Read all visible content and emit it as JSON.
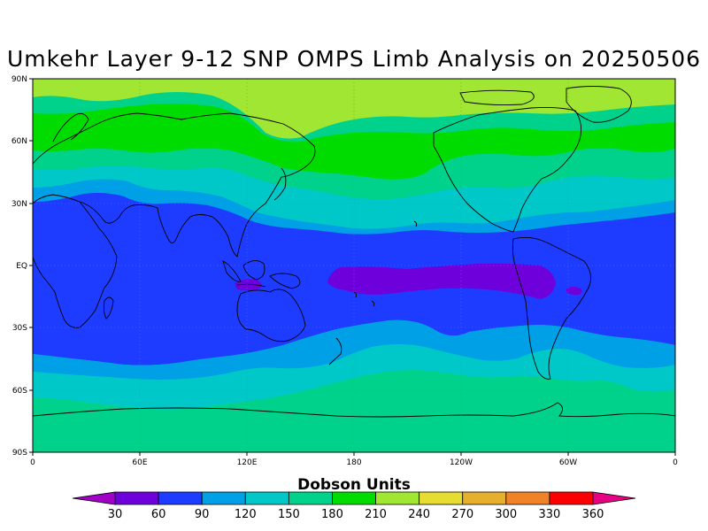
{
  "title": "Umkehr Layer 9-12 SNP OMPS Limb Analysis on 20250506",
  "map": {
    "projection": "equirectangular",
    "lon_range": [
      0,
      360
    ],
    "lat_range": [
      -90,
      90
    ],
    "lat_ticks": [
      "90N",
      "60N",
      "30N",
      "EQ",
      "30S",
      "60S",
      "90S"
    ],
    "lon_ticks": [
      "0",
      "60E",
      "120E",
      "180",
      "120W",
      "60W",
      "0"
    ],
    "grid": true
  },
  "colorbar": {
    "title": "Dobson Units",
    "levels": [
      "30",
      "60",
      "90",
      "120",
      "150",
      "180",
      "210",
      "240",
      "270",
      "300",
      "330",
      "360"
    ],
    "colors": [
      "#a000c8",
      "#6e00dc",
      "#1e3cff",
      "#00a0e6",
      "#00c8c8",
      "#00d28c",
      "#00dc00",
      "#a0e632",
      "#e6dc32",
      "#e6af2d",
      "#f08228",
      "#fa0000",
      "#e60082"
    ]
  },
  "chart_data": {
    "type": "heatmap",
    "title": "Umkehr Layer 9-12 SNP OMPS Limb Analysis on 20250506",
    "xlabel": "",
    "ylabel": "",
    "xlim": [
      0,
      360
    ],
    "ylim": [
      -90,
      90
    ],
    "zlabel": "Dobson Units",
    "zones": [
      {
        "lat_range": [
          72,
          90
        ],
        "value_range": [
          210,
          240
        ]
      },
      {
        "lat_range": [
          50,
          72
        ],
        "value_range": [
          180,
          210
        ]
      },
      {
        "lat_range": [
          38,
          50
        ],
        "value_range": [
          150,
          180
        ]
      },
      {
        "lat_range": [
          28,
          38
        ],
        "value_range": [
          120,
          150
        ]
      },
      {
        "lat_range": [
          -30,
          28
        ],
        "value_range": [
          60,
          90
        ]
      },
      {
        "lat_range": [
          -12,
          0
        ],
        "lon_range": [
          165,
          305
        ],
        "value_range": [
          30,
          60
        ]
      },
      {
        "lat_range": [
          -40,
          -30
        ],
        "value_range": [
          90,
          120
        ]
      },
      {
        "lat_range": [
          -55,
          -40
        ],
        "value_range": [
          120,
          150
        ]
      },
      {
        "lat_range": [
          -90,
          -55
        ],
        "value_range": [
          150,
          180
        ]
      }
    ]
  }
}
